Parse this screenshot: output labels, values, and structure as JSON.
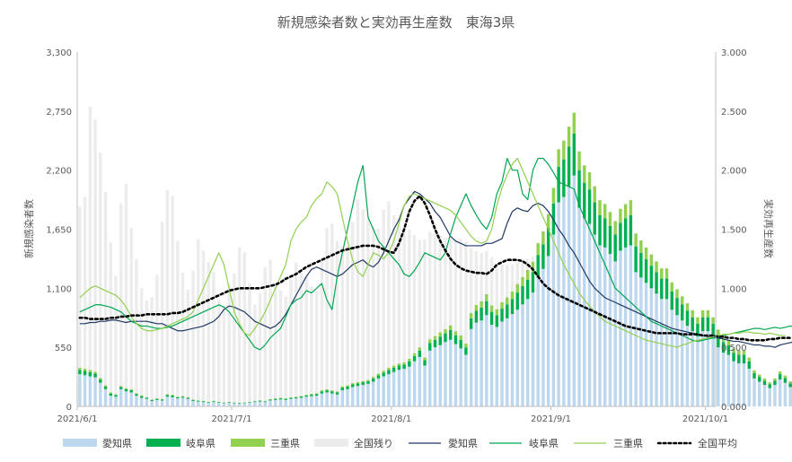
{
  "chart_data": {
    "type": "bar",
    "title": "新規感染者数と実効再生産数　東海3県",
    "ylabel": "新規感染者数",
    "y2label": "実効再生産数",
    "ylim": [
      0,
      3300
    ],
    "y2lim": [
      0,
      3
    ],
    "yticks": [
      "0",
      "550",
      "1,100",
      "1,650",
      "2,200",
      "2,750",
      "3,300"
    ],
    "y2ticks": [
      "0.000",
      "0.500",
      "1.000",
      "1.500",
      "2.000",
      "2.500",
      "3.000"
    ],
    "xtick_labels": [
      "2021/6/1",
      "2021/7/1",
      "2021/8/1",
      "2021/9/1",
      "2021/10/1"
    ],
    "xtick_index": [
      0,
      30,
      61,
      92,
      122
    ],
    "grid": false,
    "stacked": true,
    "legend_position": "bottom",
    "legend": [
      "愛知県",
      "岐阜県",
      "三重県",
      "全国残り",
      "愛知県",
      "岐阜県",
      "三重県",
      "全国平均"
    ],
    "colors": {
      "aichi_bar": "#bdd7ee",
      "gifu_bar": "#00b050",
      "mie_bar": "#92d050",
      "national_bar": "#ececec",
      "aichi_line": "#1f3864",
      "gifu_line": "#00a650",
      "mie_line": "#92d050",
      "national_line": "#000000"
    },
    "bar_series": [
      {
        "name": "愛知県",
        "values": [
          300,
          290,
          280,
          270,
          220,
          160,
          100,
          90,
          160,
          140,
          130,
          100,
          80,
          70,
          50,
          60,
          55,
          90,
          85,
          75,
          80,
          70,
          50,
          45,
          40,
          35,
          40,
          35,
          30,
          35,
          30,
          25,
          30,
          35,
          40,
          45,
          40,
          55,
          60,
          65,
          60,
          70,
          75,
          80,
          90,
          95,
          100,
          120,
          130,
          120,
          110,
          150,
          160,
          180,
          190,
          200,
          210,
          230,
          260,
          280,
          300,
          320,
          340,
          350,
          370,
          420,
          460,
          380,
          520,
          550,
          570,
          600,
          620,
          580,
          540,
          480,
          720,
          780,
          800,
          850,
          760,
          740,
          790,
          820,
          860,
          900,
          950,
          1000,
          1060,
          1200,
          1280,
          1400,
          1600,
          1900,
          1950,
          2050,
          2150,
          1850,
          1750,
          1700,
          1600,
          1500,
          1480,
          1420,
          1350,
          1450,
          1480,
          1500,
          1250,
          1200,
          1150,
          1100,
          1050,
          1000,
          1000,
          900,
          850,
          800,
          750,
          700,
          650,
          700,
          700,
          650,
          550,
          500,
          480,
          420,
          400,
          400,
          350,
          260,
          230,
          200,
          170,
          200,
          250,
          220,
          180,
          150,
          100,
          80,
          60,
          50
        ]
      },
      {
        "name": "岐阜県",
        "values": [
          40,
          40,
          40,
          35,
          30,
          25,
          20,
          15,
          20,
          20,
          20,
          15,
          15,
          10,
          10,
          10,
          10,
          15,
          15,
          10,
          10,
          10,
          10,
          8,
          8,
          6,
          8,
          6,
          5,
          6,
          5,
          5,
          5,
          6,
          6,
          8,
          6,
          8,
          10,
          10,
          10,
          10,
          10,
          12,
          12,
          15,
          15,
          20,
          20,
          20,
          20,
          25,
          25,
          25,
          25,
          25,
          25,
          30,
          30,
          35,
          40,
          40,
          40,
          40,
          50,
          50,
          60,
          50,
          70,
          70,
          80,
          80,
          90,
          80,
          80,
          70,
          100,
          110,
          120,
          130,
          120,
          110,
          120,
          130,
          140,
          160,
          170,
          180,
          190,
          210,
          230,
          260,
          290,
          330,
          350,
          370,
          390,
          350,
          330,
          320,
          300,
          280,
          270,
          260,
          250,
          260,
          270,
          280,
          240,
          230,
          220,
          210,
          200,
          190,
          190,
          170,
          160,
          150,
          140,
          130,
          120,
          130,
          130,
          120,
          110,
          100,
          90,
          80,
          80,
          80,
          70,
          50,
          45,
          40,
          35,
          40,
          50,
          45,
          35,
          30,
          20,
          15,
          12,
          10
        ]
      },
      {
        "name": "三重県",
        "values": [
          20,
          20,
          20,
          18,
          15,
          12,
          10,
          8,
          10,
          10,
          10,
          8,
          8,
          6,
          5,
          5,
          5,
          8,
          8,
          6,
          6,
          6,
          5,
          4,
          4,
          3,
          4,
          3,
          3,
          3,
          3,
          3,
          3,
          3,
          3,
          4,
          3,
          4,
          5,
          5,
          5,
          5,
          5,
          6,
          6,
          8,
          8,
          10,
          10,
          10,
          10,
          12,
          12,
          12,
          12,
          12,
          12,
          15,
          15,
          18,
          20,
          20,
          20,
          20,
          25,
          25,
          30,
          25,
          35,
          35,
          40,
          40,
          45,
          40,
          40,
          35,
          50,
          55,
          60,
          65,
          60,
          55,
          60,
          65,
          70,
          80,
          85,
          90,
          95,
          110,
          120,
          130,
          145,
          165,
          175,
          185,
          195,
          175,
          165,
          160,
          150,
          140,
          135,
          130,
          125,
          130,
          135,
          140,
          120,
          115,
          110,
          105,
          100,
          95,
          95,
          85,
          80,
          75,
          70,
          65,
          60,
          65,
          65,
          60,
          55,
          50,
          45,
          40,
          40,
          40,
          35,
          25,
          22,
          20,
          18,
          20,
          25,
          22,
          18,
          15,
          10,
          8,
          6,
          5
        ]
      },
      {
        "name": "全国残り",
        "values": [
          1500,
          1600,
          2450,
          2350,
          2100,
          1800,
          1400,
          1100,
          1700,
          1900,
          1500,
          1250,
          1000,
          900,
          950,
          1150,
          1650,
          1900,
          1850,
          1450,
          1150,
          1000,
          1200,
          1500,
          1400,
          1300,
          1200,
          950,
          900,
          1100,
          1200,
          1450,
          1400,
          1100,
          900,
          1000,
          1250,
          1300,
          1050,
          1000,
          950,
          1100,
          1250,
          1150,
          1100,
          1000,
          950,
          1200,
          1500,
          1550,
          1400,
          1300,
          1300,
          1500,
          1700,
          1600,
          1500,
          1400,
          1350,
          1500,
          1550,
          1400,
          1300,
          1250,
          1200,
          1100,
          1000,
          1100,
          1000,
          950,
          900,
          850,
          800,
          850,
          900,
          950,
          600,
          500,
          450,
          400,
          450,
          400,
          350,
          300,
          250,
          200,
          150,
          100,
          50,
          0,
          0,
          0,
          0,
          0,
          0,
          0,
          0,
          0,
          0,
          0,
          0,
          0,
          0,
          0,
          0,
          0,
          0,
          0,
          0,
          0,
          0,
          0,
          0,
          0,
          0,
          0,
          0,
          0,
          0,
          0,
          0,
          0,
          0,
          0,
          0,
          0,
          0,
          0,
          0,
          0,
          0,
          0,
          0,
          0,
          0,
          0,
          0,
          0,
          0,
          0,
          0,
          0,
          0,
          0
        ]
      }
    ],
    "line_series": [
      {
        "name": "愛知県",
        "values": [
          0.7,
          0.7,
          0.71,
          0.71,
          0.72,
          0.72,
          0.73,
          0.73,
          0.72,
          0.71,
          0.72,
          0.72,
          0.72,
          0.72,
          0.71,
          0.7,
          0.7,
          0.68,
          0.66,
          0.64,
          0.64,
          0.65,
          0.66,
          0.67,
          0.68,
          0.7,
          0.72,
          0.76,
          0.82,
          0.85,
          0.84,
          0.82,
          0.8,
          0.76,
          0.72,
          0.7,
          0.68,
          0.66,
          0.68,
          0.72,
          0.78,
          0.86,
          0.94,
          1.02,
          1.1,
          1.16,
          1.18,
          1.16,
          1.14,
          1.12,
          1.1,
          1.12,
          1.16,
          1.2,
          1.22,
          1.24,
          1.2,
          1.18,
          1.22,
          1.3,
          1.4,
          1.5,
          1.58,
          1.7,
          1.76,
          1.82,
          1.8,
          1.76,
          1.72,
          1.65,
          1.6,
          1.52,
          1.44,
          1.4,
          1.38,
          1.36,
          1.36,
          1.36,
          1.36,
          1.38,
          1.38,
          1.4,
          1.42,
          1.55,
          1.65,
          1.68,
          1.66,
          1.65,
          1.7,
          1.72,
          1.7,
          1.65,
          1.58,
          1.5,
          1.44,
          1.36,
          1.3,
          1.22,
          1.14,
          1.06,
          1.0,
          0.96,
          0.92,
          0.9,
          0.88,
          0.86,
          0.84,
          0.82,
          0.8,
          0.78,
          0.76,
          0.74,
          0.72,
          0.7,
          0.68,
          0.66,
          0.65,
          0.64,
          0.63,
          0.62,
          0.61,
          0.6,
          0.59,
          0.58,
          0.58,
          0.57,
          0.56,
          0.55,
          0.55,
          0.54,
          0.53,
          0.52,
          0.52,
          0.51,
          0.51,
          0.5,
          0.52,
          0.53,
          0.54,
          0.55,
          0.55
        ]
      },
      {
        "name": "岐阜県",
        "values": [
          0.8,
          0.82,
          0.84,
          0.86,
          0.86,
          0.85,
          0.84,
          0.82,
          0.8,
          0.76,
          0.72,
          0.7,
          0.68,
          0.68,
          0.67,
          0.66,
          0.66,
          0.67,
          0.68,
          0.7,
          0.72,
          0.74,
          0.76,
          0.78,
          0.8,
          0.82,
          0.84,
          0.86,
          0.84,
          0.8,
          0.74,
          0.68,
          0.62,
          0.56,
          0.5,
          0.48,
          0.52,
          0.58,
          0.62,
          0.66,
          0.76,
          0.86,
          0.9,
          0.92,
          0.98,
          0.96,
          1.0,
          1.04,
          0.9,
          0.82,
          1.1,
          1.3,
          1.5,
          1.7,
          1.9,
          2.04,
          1.6,
          1.5,
          1.4,
          1.35,
          1.3,
          1.25,
          1.2,
          1.12,
          1.1,
          1.15,
          1.22,
          1.3,
          1.28,
          1.26,
          1.24,
          1.3,
          1.46,
          1.6,
          1.7,
          1.8,
          1.7,
          1.62,
          1.55,
          1.5,
          1.6,
          1.8,
          1.9,
          2.1,
          2.0,
          2.0,
          1.8,
          1.75,
          2.0,
          2.1,
          2.1,
          2.05,
          1.98,
          1.9,
          1.88,
          1.86,
          1.84,
          1.7,
          1.6,
          1.5,
          1.4,
          1.3,
          1.2,
          1.1,
          1.0,
          0.96,
          0.92,
          0.88,
          0.84,
          0.8,
          0.76,
          0.72,
          0.7,
          0.68,
          0.66,
          0.64,
          0.62,
          0.6,
          0.58,
          0.56,
          0.55,
          0.56,
          0.57,
          0.58,
          0.59,
          0.6,
          0.61,
          0.62,
          0.63,
          0.64,
          0.65,
          0.66,
          0.66,
          0.65,
          0.66,
          0.67,
          0.66,
          0.67,
          0.68,
          0.67,
          0.66
        ]
      },
      {
        "name": "三重県",
        "values": [
          0.92,
          0.96,
          1.0,
          1.02,
          1.0,
          0.98,
          0.96,
          0.94,
          0.9,
          0.84,
          0.76,
          0.7,
          0.66,
          0.64,
          0.64,
          0.65,
          0.66,
          0.68,
          0.7,
          0.72,
          0.74,
          0.76,
          0.8,
          0.9,
          1.0,
          1.1,
          1.2,
          1.3,
          1.2,
          1.0,
          0.8,
          0.7,
          0.62,
          0.6,
          0.66,
          0.72,
          0.8,
          0.9,
          1.0,
          1.1,
          1.2,
          1.4,
          1.5,
          1.56,
          1.6,
          1.7,
          1.76,
          1.8,
          1.9,
          1.86,
          1.8,
          1.6,
          1.4,
          1.24,
          1.14,
          1.1,
          1.2,
          1.3,
          1.28,
          1.25,
          1.3,
          1.4,
          1.55,
          1.7,
          1.78,
          1.8,
          1.78,
          1.76,
          1.74,
          1.72,
          1.7,
          1.68,
          1.66,
          1.62,
          1.56,
          1.5,
          1.44,
          1.4,
          1.38,
          1.4,
          1.5,
          1.7,
          1.85,
          1.96,
          2.05,
          2.1,
          2.0,
          1.9,
          1.8,
          1.7,
          1.6,
          1.5,
          1.4,
          1.3,
          1.2,
          1.12,
          1.04,
          0.96,
          0.9,
          0.85,
          0.8,
          0.76,
          0.72,
          0.7,
          0.68,
          0.66,
          0.64,
          0.62,
          0.6,
          0.58,
          0.56,
          0.55,
          0.54,
          0.53,
          0.52,
          0.51,
          0.5,
          0.52,
          0.53,
          0.55,
          0.56,
          0.57,
          0.58,
          0.59,
          0.6,
          0.61,
          0.61,
          0.62,
          0.62,
          0.63,
          0.63,
          0.62,
          0.62,
          0.61,
          0.62,
          0.61,
          0.6,
          0.6
        ]
      },
      {
        "name": "全国平均",
        "values": [
          0.75,
          0.75,
          0.74,
          0.74,
          0.74,
          0.74,
          0.75,
          0.75,
          0.76,
          0.76,
          0.77,
          0.77,
          0.77,
          0.78,
          0.78,
          0.78,
          0.78,
          0.78,
          0.79,
          0.79,
          0.8,
          0.82,
          0.84,
          0.86,
          0.88,
          0.9,
          0.92,
          0.94,
          0.96,
          0.98,
          0.99,
          1.0,
          1.0,
          1.0,
          1.0,
          1.0,
          1.01,
          1.02,
          1.03,
          1.05,
          1.08,
          1.1,
          1.12,
          1.15,
          1.18,
          1.2,
          1.22,
          1.24,
          1.26,
          1.28,
          1.3,
          1.32,
          1.33,
          1.34,
          1.35,
          1.36,
          1.36,
          1.36,
          1.35,
          1.33,
          1.31,
          1.3,
          1.38,
          1.5,
          1.65,
          1.74,
          1.78,
          1.72,
          1.62,
          1.5,
          1.4,
          1.32,
          1.25,
          1.2,
          1.17,
          1.15,
          1.14,
          1.13,
          1.13,
          1.12,
          1.15,
          1.2,
          1.22,
          1.24,
          1.24,
          1.24,
          1.23,
          1.2,
          1.16,
          1.1,
          1.04,
          1.0,
          0.97,
          0.94,
          0.92,
          0.9,
          0.88,
          0.86,
          0.84,
          0.82,
          0.8,
          0.78,
          0.76,
          0.74,
          0.72,
          0.7,
          0.68,
          0.67,
          0.66,
          0.65,
          0.64,
          0.63,
          0.62,
          0.62,
          0.62,
          0.62,
          0.62,
          0.61,
          0.61,
          0.61,
          0.61,
          0.6,
          0.6,
          0.6,
          0.59,
          0.59,
          0.58,
          0.58,
          0.57,
          0.57,
          0.56,
          0.56,
          0.56,
          0.56,
          0.57,
          0.57,
          0.58,
          0.58,
          0.58
        ]
      }
    ]
  }
}
